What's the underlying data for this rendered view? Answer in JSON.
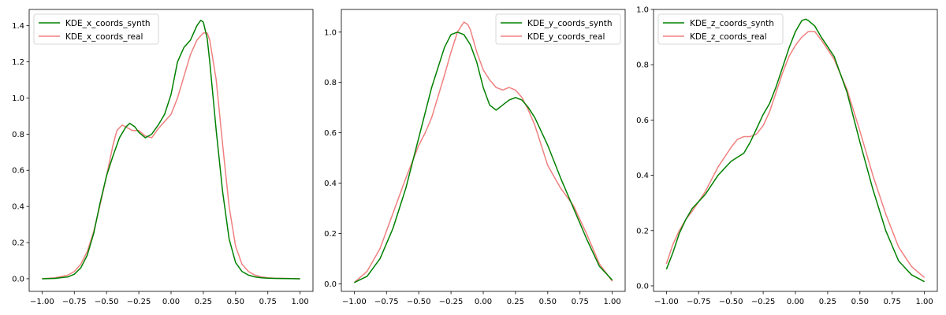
{
  "chart_data": [
    {
      "type": "line",
      "title": "",
      "xlabel": "",
      "ylabel": "",
      "xlim": [
        -1.1,
        1.1
      ],
      "ylim": [
        -0.07,
        1.49
      ],
      "xticks": [
        "−1.00",
        "−0.75",
        "−0.50",
        "−0.25",
        "0.00",
        "0.25",
        "0.50",
        "0.75",
        "1.00"
      ],
      "yticks": [
        "0.0",
        "0.2",
        "0.4",
        "0.6",
        "0.8",
        "1.0",
        "1.2",
        "1.4"
      ],
      "legend_position": "top-left",
      "series": [
        {
          "name": "KDE_x_coords_synth",
          "color": "#008000",
          "x": [
            -1.0,
            -0.9,
            -0.8,
            -0.75,
            -0.7,
            -0.65,
            -0.6,
            -0.55,
            -0.5,
            -0.45,
            -0.4,
            -0.35,
            -0.32,
            -0.28,
            -0.25,
            -0.2,
            -0.15,
            -0.1,
            -0.05,
            0.0,
            0.05,
            0.1,
            0.15,
            0.2,
            0.23,
            0.25,
            0.28,
            0.3,
            0.35,
            0.4,
            0.45,
            0.5,
            0.55,
            0.6,
            0.65,
            0.7,
            0.75,
            0.8,
            0.9,
            1.0
          ],
          "y": [
            0.0,
            0.002,
            0.01,
            0.025,
            0.06,
            0.13,
            0.25,
            0.42,
            0.57,
            0.68,
            0.78,
            0.84,
            0.86,
            0.84,
            0.81,
            0.78,
            0.8,
            0.85,
            0.91,
            1.02,
            1.2,
            1.28,
            1.32,
            1.4,
            1.43,
            1.42,
            1.33,
            1.2,
            0.82,
            0.48,
            0.22,
            0.09,
            0.04,
            0.02,
            0.01,
            0.005,
            0.003,
            0.002,
            0.001,
            0.0
          ]
        },
        {
          "name": "KDE_x_coords_real",
          "color": "#f08080",
          "x": [
            -1.0,
            -0.9,
            -0.8,
            -0.75,
            -0.7,
            -0.65,
            -0.6,
            -0.55,
            -0.5,
            -0.45,
            -0.42,
            -0.38,
            -0.35,
            -0.3,
            -0.25,
            -0.2,
            -0.15,
            -0.1,
            -0.05,
            0.0,
            0.05,
            0.1,
            0.15,
            0.2,
            0.25,
            0.28,
            0.3,
            0.35,
            0.4,
            0.45,
            0.5,
            0.55,
            0.6,
            0.65,
            0.7,
            0.75,
            0.8,
            0.9,
            1.0
          ],
          "y": [
            0.0,
            0.005,
            0.02,
            0.04,
            0.08,
            0.15,
            0.26,
            0.41,
            0.57,
            0.74,
            0.82,
            0.85,
            0.84,
            0.82,
            0.82,
            0.79,
            0.78,
            0.83,
            0.87,
            0.91,
            1.0,
            1.12,
            1.24,
            1.32,
            1.36,
            1.36,
            1.32,
            1.1,
            0.74,
            0.4,
            0.18,
            0.08,
            0.04,
            0.02,
            0.01,
            0.005,
            0.003,
            0.002,
            0.0
          ]
        }
      ]
    },
    {
      "type": "line",
      "title": "",
      "xlabel": "",
      "ylabel": "",
      "xlim": [
        -1.1,
        1.1
      ],
      "ylim": [
        -0.03,
        1.09
      ],
      "xticks": [
        "−1.00",
        "−0.75",
        "−0.50",
        "−0.25",
        "0.00",
        "0.25",
        "0.50",
        "0.75",
        "1.00"
      ],
      "yticks": [
        "0.0",
        "0.2",
        "0.4",
        "0.6",
        "0.8",
        "1.0"
      ],
      "legend_position": "top-right",
      "series": [
        {
          "name": "KDE_y_coords_synth",
          "color": "#008000",
          "x": [
            -1.0,
            -0.9,
            -0.8,
            -0.7,
            -0.6,
            -0.5,
            -0.4,
            -0.3,
            -0.25,
            -0.2,
            -0.15,
            -0.1,
            -0.05,
            0.0,
            0.05,
            0.1,
            0.15,
            0.2,
            0.25,
            0.3,
            0.35,
            0.4,
            0.5,
            0.6,
            0.7,
            0.8,
            0.9,
            1.0
          ],
          "y": [
            0.005,
            0.03,
            0.1,
            0.22,
            0.38,
            0.58,
            0.78,
            0.94,
            0.99,
            1.0,
            0.99,
            0.95,
            0.88,
            0.78,
            0.71,
            0.69,
            0.71,
            0.73,
            0.74,
            0.73,
            0.7,
            0.66,
            0.55,
            0.42,
            0.3,
            0.18,
            0.07,
            0.015
          ]
        },
        {
          "name": "KDE_y_coords_real",
          "color": "#f08080",
          "x": [
            -1.0,
            -0.9,
            -0.8,
            -0.7,
            -0.6,
            -0.5,
            -0.45,
            -0.4,
            -0.3,
            -0.25,
            -0.2,
            -0.15,
            -0.12,
            -0.1,
            -0.05,
            0.0,
            0.05,
            0.1,
            0.15,
            0.2,
            0.25,
            0.3,
            0.35,
            0.4,
            0.5,
            0.6,
            0.7,
            0.8,
            0.9,
            1.0
          ],
          "y": [
            0.005,
            0.05,
            0.14,
            0.28,
            0.42,
            0.55,
            0.6,
            0.66,
            0.83,
            0.92,
            1.0,
            1.04,
            1.03,
            1.01,
            0.92,
            0.85,
            0.81,
            0.78,
            0.77,
            0.78,
            0.77,
            0.74,
            0.69,
            0.63,
            0.47,
            0.38,
            0.31,
            0.2,
            0.08,
            0.01
          ]
        }
      ]
    },
    {
      "type": "line",
      "title": "",
      "xlabel": "",
      "ylabel": "",
      "xlim": [
        -1.1,
        1.1
      ],
      "ylim": [
        -0.02,
        1.0
      ],
      "xticks": [
        "−1.00",
        "−0.75",
        "−0.50",
        "−0.25",
        "0.00",
        "0.25",
        "0.50",
        "0.75",
        "1.00"
      ],
      "yticks": [
        "0.0",
        "0.2",
        "0.4",
        "0.6",
        "0.8",
        "1.0"
      ],
      "legend_position": "top-left",
      "series": [
        {
          "name": "KDE_z_coords_synth",
          "color": "#008000",
          "x": [
            -1.0,
            -0.95,
            -0.9,
            -0.85,
            -0.8,
            -0.7,
            -0.6,
            -0.5,
            -0.4,
            -0.35,
            -0.3,
            -0.25,
            -0.2,
            -0.15,
            -0.1,
            -0.05,
            0.0,
            0.05,
            0.08,
            0.1,
            0.15,
            0.2,
            0.3,
            0.4,
            0.5,
            0.6,
            0.7,
            0.8,
            0.9,
            1.0
          ],
          "y": [
            0.06,
            0.12,
            0.19,
            0.24,
            0.28,
            0.33,
            0.4,
            0.45,
            0.48,
            0.52,
            0.57,
            0.62,
            0.66,
            0.72,
            0.79,
            0.86,
            0.92,
            0.96,
            0.965,
            0.96,
            0.94,
            0.9,
            0.83,
            0.7,
            0.52,
            0.35,
            0.2,
            0.09,
            0.04,
            0.015
          ]
        },
        {
          "name": "KDE_z_coords_real",
          "color": "#f08080",
          "x": [
            -1.0,
            -0.95,
            -0.9,
            -0.85,
            -0.8,
            -0.7,
            -0.6,
            -0.5,
            -0.45,
            -0.4,
            -0.35,
            -0.3,
            -0.25,
            -0.2,
            -0.15,
            -0.1,
            -0.05,
            0.0,
            0.05,
            0.1,
            0.15,
            0.2,
            0.3,
            0.4,
            0.5,
            0.6,
            0.7,
            0.8,
            0.9,
            1.0
          ],
          "y": [
            0.08,
            0.15,
            0.2,
            0.24,
            0.27,
            0.34,
            0.43,
            0.5,
            0.53,
            0.54,
            0.54,
            0.55,
            0.58,
            0.63,
            0.7,
            0.77,
            0.83,
            0.87,
            0.9,
            0.92,
            0.92,
            0.89,
            0.82,
            0.71,
            0.56,
            0.4,
            0.26,
            0.14,
            0.07,
            0.03
          ]
        }
      ]
    }
  ]
}
